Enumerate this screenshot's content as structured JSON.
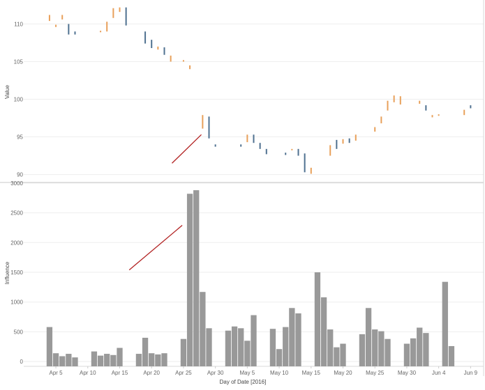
{
  "chart_data": [
    {
      "type": "candlestick",
      "ylabel": "Value",
      "ylim": [
        89.5,
        113
      ],
      "yticks": [
        90,
        95,
        100,
        105,
        110
      ],
      "colors": {
        "up": "#e8a05a",
        "down": "#4f7190"
      },
      "candles": [
        {
          "day": 4,
          "open": 110.4,
          "close": 111.2,
          "dir": "up"
        },
        {
          "day": 5,
          "open": 109.6,
          "close": 109.9,
          "dir": "up"
        },
        {
          "day": 6,
          "open": 110.6,
          "close": 111.2,
          "dir": "up"
        },
        {
          "day": 7,
          "open": 110.0,
          "close": 108.6,
          "dir": "down"
        },
        {
          "day": 8,
          "open": 109.0,
          "close": 108.6,
          "dir": "down"
        },
        {
          "day": 12,
          "open": 108.9,
          "close": 109.1,
          "dir": "up"
        },
        {
          "day": 13,
          "open": 109.0,
          "close": 110.3,
          "dir": "up"
        },
        {
          "day": 14,
          "open": 110.8,
          "close": 112.1,
          "dir": "up"
        },
        {
          "day": 15,
          "open": 111.6,
          "close": 112.2,
          "dir": "up"
        },
        {
          "day": 16,
          "open": 112.2,
          "close": 109.8,
          "dir": "down"
        },
        {
          "day": 19,
          "open": 109.0,
          "close": 107.4,
          "dir": "down"
        },
        {
          "day": 20,
          "open": 107.9,
          "close": 106.8,
          "dir": "down"
        },
        {
          "day": 21,
          "open": 107.0,
          "close": 106.6,
          "dir": "up"
        },
        {
          "day": 22,
          "open": 106.9,
          "close": 105.9,
          "dir": "down"
        },
        {
          "day": 23,
          "open": 105.8,
          "close": 105.0,
          "dir": "up"
        },
        {
          "day": 25,
          "open": 105.0,
          "close": 105.2,
          "dir": "up"
        },
        {
          "day": 26,
          "open": 104.5,
          "close": 104.0,
          "dir": "up"
        },
        {
          "day": 28,
          "open": 96.1,
          "close": 97.9,
          "dir": "up"
        },
        {
          "day": 29,
          "open": 97.7,
          "close": 94.8,
          "dir": "down"
        },
        {
          "day": 30,
          "open": 94.0,
          "close": 93.7,
          "dir": "down"
        },
        {
          "day": 34,
          "open": 94.0,
          "close": 93.7,
          "dir": "down"
        },
        {
          "day": 35,
          "open": 94.3,
          "close": 95.3,
          "dir": "up"
        },
        {
          "day": 36,
          "open": 95.3,
          "close": 94.2,
          "dir": "down"
        },
        {
          "day": 37,
          "open": 94.2,
          "close": 93.4,
          "dir": "down"
        },
        {
          "day": 38,
          "open": 93.4,
          "close": 92.7,
          "dir": "down"
        },
        {
          "day": 41,
          "open": 92.9,
          "close": 92.6,
          "dir": "down"
        },
        {
          "day": 42,
          "open": 93.4,
          "close": 93.3,
          "dir": "up"
        },
        {
          "day": 43,
          "open": 93.4,
          "close": 92.5,
          "dir": "down"
        },
        {
          "day": 44,
          "open": 92.8,
          "close": 90.3,
          "dir": "down"
        },
        {
          "day": 45,
          "open": 90.9,
          "close": 90.1,
          "dir": "up"
        },
        {
          "day": 48,
          "open": 92.5,
          "close": 93.9,
          "dir": "up"
        },
        {
          "day": 49,
          "open": 94.6,
          "close": 93.4,
          "dir": "down"
        },
        {
          "day": 50,
          "open": 94.1,
          "close": 94.7,
          "dir": "up"
        },
        {
          "day": 51,
          "open": 94.8,
          "close": 94.2,
          "dir": "down"
        },
        {
          "day": 52,
          "open": 94.5,
          "close": 95.3,
          "dir": "up"
        },
        {
          "day": 55,
          "open": 95.7,
          "close": 96.3,
          "dir": "up"
        },
        {
          "day": 56,
          "open": 96.8,
          "close": 97.7,
          "dir": "up"
        },
        {
          "day": 57,
          "open": 98.5,
          "close": 99.8,
          "dir": "up"
        },
        {
          "day": 58,
          "open": 99.6,
          "close": 100.5,
          "dir": "up"
        },
        {
          "day": 59,
          "open": 100.4,
          "close": 99.3,
          "dir": "up"
        },
        {
          "day": 62,
          "open": 99.8,
          "close": 99.4,
          "dir": "up"
        },
        {
          "day": 63,
          "open": 99.2,
          "close": 98.5,
          "dir": "down"
        },
        {
          "day": 64,
          "open": 97.9,
          "close": 97.6,
          "dir": "up"
        },
        {
          "day": 65,
          "open": 97.8,
          "close": 98.0,
          "dir": "up"
        },
        {
          "day": 69,
          "open": 97.9,
          "close": 98.6,
          "dir": "up"
        },
        {
          "day": 70,
          "open": 98.8,
          "close": 99.2,
          "dir": "down"
        }
      ],
      "annotation_line": {
        "from": {
          "day": 23.2,
          "value": 91.5
        },
        "to": {
          "day": 27.8,
          "value": 95.3
        },
        "color": "#b22222"
      }
    },
    {
      "type": "bar",
      "ylabel": "Influence",
      "xlabel": "Day of Date [2016]",
      "ylim": [
        -80,
        3010
      ],
      "yticks": [
        0,
        500,
        1000,
        1500,
        2000,
        2500,
        3000
      ],
      "bar_color": "#999999",
      "x_tick_labels": [
        {
          "day": 5,
          "label": "Apr 5"
        },
        {
          "day": 10,
          "label": "Apr 10"
        },
        {
          "day": 15,
          "label": "Apr 15"
        },
        {
          "day": 20,
          "label": "Apr 20"
        },
        {
          "day": 25,
          "label": "Apr 25"
        },
        {
          "day": 30,
          "label": "Apr 30"
        },
        {
          "day": 35,
          "label": "May 5"
        },
        {
          "day": 40,
          "label": "May 10"
        },
        {
          "day": 45,
          "label": "May 15"
        },
        {
          "day": 50,
          "label": "May 20"
        },
        {
          "day": 55,
          "label": "May 25"
        },
        {
          "day": 60,
          "label": "May 30"
        },
        {
          "day": 65,
          "label": "Jun 4"
        },
        {
          "day": 70,
          "label": "Jun 9"
        }
      ],
      "bars": [
        {
          "day": 4,
          "value": 580
        },
        {
          "day": 5,
          "value": 140
        },
        {
          "day": 6,
          "value": 90
        },
        {
          "day": 7,
          "value": 130
        },
        {
          "day": 8,
          "value": 70
        },
        {
          "day": 11,
          "value": 170
        },
        {
          "day": 12,
          "value": 100
        },
        {
          "day": 13,
          "value": 130
        },
        {
          "day": 14,
          "value": 110
        },
        {
          "day": 15,
          "value": 230
        },
        {
          "day": 18,
          "value": 130
        },
        {
          "day": 19,
          "value": 400
        },
        {
          "day": 20,
          "value": 140
        },
        {
          "day": 21,
          "value": 120
        },
        {
          "day": 22,
          "value": 140
        },
        {
          "day": 25,
          "value": 380
        },
        {
          "day": 26,
          "value": 2820
        },
        {
          "day": 27,
          "value": 2880
        },
        {
          "day": 28,
          "value": 1170
        },
        {
          "day": 29,
          "value": 560
        },
        {
          "day": 32,
          "value": 520
        },
        {
          "day": 33,
          "value": 590
        },
        {
          "day": 34,
          "value": 560
        },
        {
          "day": 35,
          "value": 350
        },
        {
          "day": 36,
          "value": 780
        },
        {
          "day": 39,
          "value": 550
        },
        {
          "day": 40,
          "value": 210
        },
        {
          "day": 41,
          "value": 580
        },
        {
          "day": 42,
          "value": 900
        },
        {
          "day": 43,
          "value": 810
        },
        {
          "day": 46,
          "value": 1500
        },
        {
          "day": 47,
          "value": 1080
        },
        {
          "day": 48,
          "value": 540
        },
        {
          "day": 49,
          "value": 240
        },
        {
          "day": 50,
          "value": 300
        },
        {
          "day": 53,
          "value": 460
        },
        {
          "day": 54,
          "value": 900
        },
        {
          "day": 55,
          "value": 540
        },
        {
          "day": 56,
          "value": 510
        },
        {
          "day": 57,
          "value": 380
        },
        {
          "day": 60,
          "value": 300
        },
        {
          "day": 61,
          "value": 390
        },
        {
          "day": 62,
          "value": 570
        },
        {
          "day": 63,
          "value": 480
        },
        {
          "day": 66,
          "value": 1340
        },
        {
          "day": 67,
          "value": 260
        }
      ],
      "annotation_line": {
        "from": {
          "day": 16.5,
          "value": 1540
        },
        "to": {
          "day": 24.8,
          "value": 2290
        },
        "color": "#b22222"
      }
    }
  ]
}
